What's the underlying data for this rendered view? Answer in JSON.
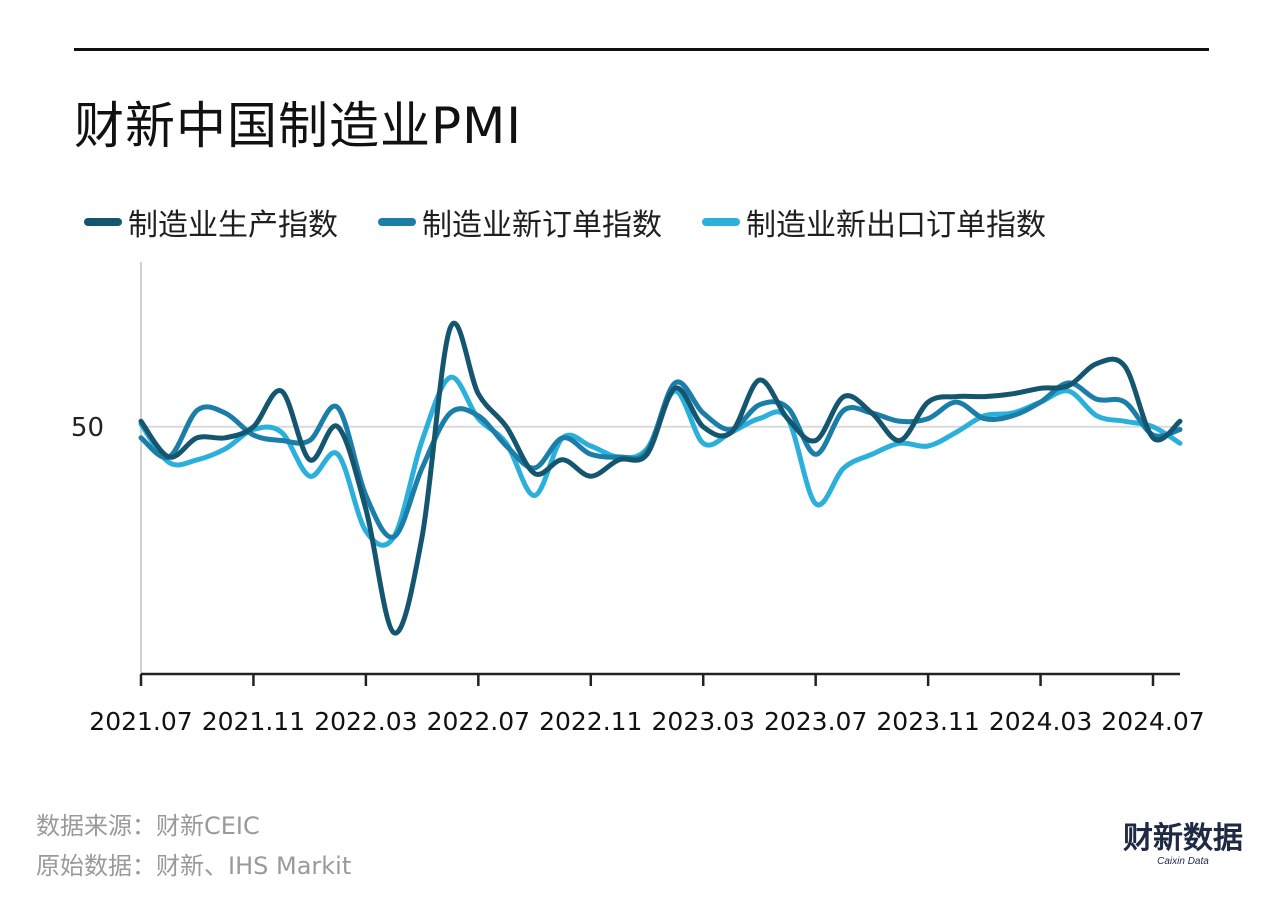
{
  "title": "财新中国制造业PMI",
  "legend": [
    {
      "label": "制造业生产指数",
      "color": "#14566f"
    },
    {
      "label": "制造业新订单指数",
      "color": "#1b7ea8"
    },
    {
      "label": "制造业新出口订单指数",
      "color": "#2bb0dc"
    }
  ],
  "footer": {
    "source": "数据来源：财新CEIC",
    "original": "原始数据：财新、IHS Markit"
  },
  "logo": {
    "main": "财新数据",
    "sub": "Caixin Data"
  },
  "chart_data": {
    "type": "line",
    "title": "财新中国制造业PMI",
    "xlabel": "",
    "ylabel": "",
    "ylim": [
      41,
      56
    ],
    "y_ticks": [
      50
    ],
    "grid": "horizontal line at 50",
    "legend_position": "top",
    "x_tick_labels": [
      "2021.07",
      "2021.11",
      "2022.03",
      "2022.07",
      "2022.11",
      "2023.03",
      "2023.07",
      "2023.11",
      "2024.03",
      "2024.07"
    ],
    "x": [
      "2021.07",
      "2021.08",
      "2021.09",
      "2021.10",
      "2021.11",
      "2021.12",
      "2022.01",
      "2022.02",
      "2022.03",
      "2022.04",
      "2022.05",
      "2022.06",
      "2022.07",
      "2022.08",
      "2022.09",
      "2022.10",
      "2022.11",
      "2022.12",
      "2023.01",
      "2023.02",
      "2023.03",
      "2023.04",
      "2023.05",
      "2023.06",
      "2023.07",
      "2023.08",
      "2023.09",
      "2023.10",
      "2023.11",
      "2023.12",
      "2024.01",
      "2024.02",
      "2024.03",
      "2024.04",
      "2024.05",
      "2024.06",
      "2024.07",
      "2024.08"
    ],
    "series": [
      {
        "name": "制造业生产指数",
        "color": "#14566f",
        "values": [
          50.2,
          48.9,
          49.6,
          49.6,
          50.0,
          51.3,
          48.8,
          50.0,
          47.0,
          42.5,
          46.0,
          53.6,
          51.2,
          50.0,
          48.3,
          48.8,
          48.2,
          48.8,
          49.0,
          51.4,
          50.0,
          49.8,
          51.7,
          50.3,
          49.5,
          51.1,
          50.5,
          49.5,
          50.9,
          51.1,
          51.1,
          51.2,
          51.4,
          51.5,
          52.3,
          52.2,
          49.6,
          50.2
        ]
      },
      {
        "name": "制造业新订单指数",
        "color": "#1b7ea8",
        "values": [
          49.6,
          48.9,
          50.6,
          50.5,
          49.7,
          49.5,
          49.5,
          50.7,
          47.5,
          46.0,
          48.5,
          50.5,
          50.4,
          49.3,
          48.5,
          49.6,
          49.0,
          48.9,
          49.1,
          51.6,
          50.5,
          49.9,
          50.8,
          50.7,
          49.0,
          50.6,
          50.5,
          50.2,
          50.3,
          50.9,
          50.3,
          50.4,
          50.9,
          51.6,
          51.0,
          50.9,
          49.7,
          49.9
        ]
      },
      {
        "name": "制造业新出口订单指数",
        "color": "#2bb0dc",
        "values": [
          50.1,
          48.7,
          48.8,
          49.2,
          49.9,
          49.8,
          48.2,
          49.0,
          46.2,
          46.0,
          49.5,
          51.8,
          50.3,
          49.4,
          47.5,
          49.6,
          49.3,
          48.9,
          49.2,
          51.3,
          49.4,
          49.8,
          50.3,
          50.3,
          47.2,
          48.5,
          49.0,
          49.4,
          49.3,
          49.8,
          50.4,
          50.5,
          50.9,
          51.3,
          50.4,
          50.2,
          50.0,
          49.4
        ]
      }
    ]
  }
}
